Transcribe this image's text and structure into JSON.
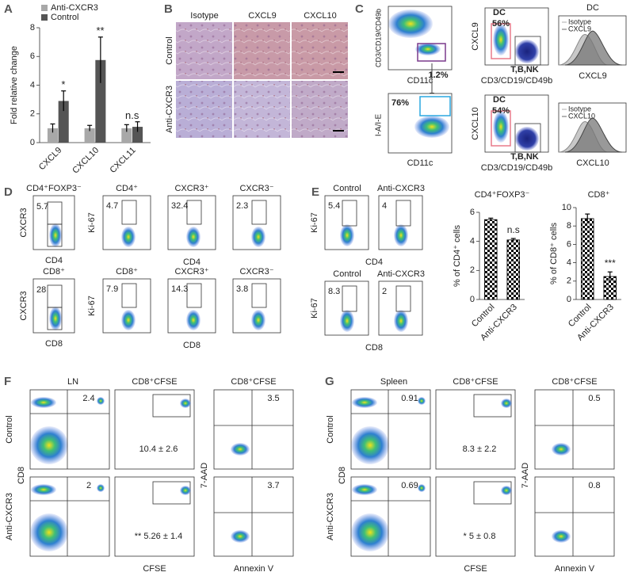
{
  "chart_data": [
    {
      "type": "bar",
      "label": "A",
      "ylabel": "Fold relative change",
      "categories": [
        "CXCL9",
        "CXCL10",
        "CXCL11"
      ],
      "series": [
        {
          "name": "Anti-CXCR3",
          "color": "#a8a8a8",
          "values": [
            1,
            1,
            1
          ],
          "errors": [
            0.3,
            0.2,
            0.25
          ]
        },
        {
          "name": "Control",
          "color": "#555555",
          "values": [
            2.9,
            5.75,
            1.1
          ],
          "errors": [
            0.7,
            1.6,
            0.35
          ]
        }
      ],
      "annotations": [
        "*",
        "**",
        "n.s"
      ],
      "ylim": [
        0,
        8
      ],
      "yticks": [
        0,
        2,
        4,
        6,
        8
      ],
      "legend": "upper left"
    },
    {
      "type": "bar",
      "title": "CD4⁺FOXP3⁻",
      "ylabel": "% of CD4⁺ cells",
      "categories": [
        "Control",
        "Anti-CXCR3"
      ],
      "values": [
        5.5,
        4.1
      ],
      "errors": [
        0.1,
        0.1
      ],
      "color": "#000000",
      "pattern": "checkerboard",
      "annotation": "n.s",
      "ylim": [
        0,
        6
      ],
      "yticks": [
        0,
        2,
        4,
        6
      ]
    },
    {
      "type": "bar",
      "title": "CD8⁺",
      "ylabel": "% of CD8⁺ cells",
      "categories": [
        "Control",
        "Anti-CXCR3"
      ],
      "values": [
        8.8,
        2.5
      ],
      "errors": [
        0.5,
        0.5
      ],
      "color": "#000000",
      "pattern": "checkerboard",
      "annotation": "***",
      "ylim": [
        0,
        10
      ],
      "yticks": [
        0,
        2,
        4,
        6,
        8,
        10
      ]
    }
  ],
  "B": {
    "label": "B",
    "columns": [
      "Isotype",
      "CXCL9",
      "CXCL10"
    ],
    "rows": [
      "Control",
      "Anti-CXCR3"
    ]
  },
  "C": {
    "label": "C",
    "plot1": {
      "ylabel": "CD3/CD19/CD49b",
      "xlabel": "CD11c",
      "gate": "1.2%"
    },
    "plot2": {
      "ylabel": "I-A/I-E",
      "xlabel": "CD11c",
      "gate": "76%"
    },
    "dc_plots": [
      {
        "ylabel": "CXCL9",
        "xlabel": "CD3/CD19/CD49b",
        "dc": "DC",
        "pct": "56%",
        "tbnk": "T,B,NK"
      },
      {
        "ylabel": "CXCL10",
        "xlabel": "CD3/CD19/CD49b",
        "dc": "DC",
        "pct": "54%",
        "tbnk": "T,B,NK"
      }
    ],
    "histograms": {
      "title": "DC",
      "plots": [
        {
          "legend": [
            "Isotype",
            "CXCL9"
          ],
          "xlabel": "CXCL9"
        },
        {
          "legend": [
            "Isotype",
            "CXCL10"
          ],
          "xlabel": "CXCL10"
        }
      ]
    }
  },
  "D": {
    "label": "D",
    "rows": [
      {
        "gate_plot": {
          "title": "CD4⁺FOXP3⁻",
          "ylabel": "CXCR3",
          "xlabel": "CD4",
          "value": 5.7
        },
        "ki_plots": [
          {
            "title": "CD4⁺",
            "value": 4.7
          },
          {
            "title": "CXCR3⁺",
            "value": 32.4
          },
          {
            "title": "CXCR3⁻",
            "value": 2.3
          }
        ],
        "ylabel": "Ki-67",
        "xlabel": "CD4"
      },
      {
        "gate_plot": {
          "title": "CD8⁺",
          "ylabel": "CXCR3",
          "xlabel": "CD8",
          "value": 28
        },
        "ki_plots": [
          {
            "title": "CD8⁺",
            "value": 7.9
          },
          {
            "title": "CXCR3⁺",
            "value": 14.3
          },
          {
            "title": "CXCR3⁻",
            "value": 3.8
          }
        ],
        "ylabel": "Ki-67",
        "xlabel": "CD8"
      }
    ]
  },
  "E": {
    "label": "E",
    "rows": [
      {
        "titles": [
          "Control",
          "Anti-CXCR3"
        ],
        "values": [
          5.4,
          4
        ],
        "ylabel": "Ki-67",
        "xlabel": "CD4"
      },
      {
        "titles": [
          "Control",
          "Anti-CXCR3"
        ],
        "values": [
          8.3,
          2
        ],
        "ylabel": "Ki-67",
        "xlabel": "CD8"
      }
    ]
  },
  "F": {
    "label": "F",
    "title": "LN",
    "col_titles": [
      "CD8⁺CFSE",
      "CD8⁺CFSE"
    ],
    "rows": [
      "Control",
      "Anti-CXCR3"
    ],
    "ylabel": "CD8",
    "ylabel2": "7-AAD",
    "xlabel": "CFSE",
    "xlabel2": "Annexin V",
    "values": [
      [
        2.4,
        "10.4 ± 2.6",
        3.5
      ],
      [
        2,
        "** 5.26 ± 1.4",
        3.7
      ]
    ]
  },
  "G": {
    "label": "G",
    "title": "Spleen",
    "col_titles": [
      "CD8⁺CFSE",
      "CD8⁺CFSE"
    ],
    "rows": [
      "Control",
      "Anti-CXCR3"
    ],
    "ylabel": "CD8",
    "ylabel2": "7-AAD",
    "xlabel": "CFSE",
    "xlabel2": "Annexin V",
    "values": [
      [
        0.91,
        "8.3 ± 2.2",
        0.5
      ],
      [
        0.69,
        "* 5 ± 0.8",
        0.8
      ]
    ]
  }
}
